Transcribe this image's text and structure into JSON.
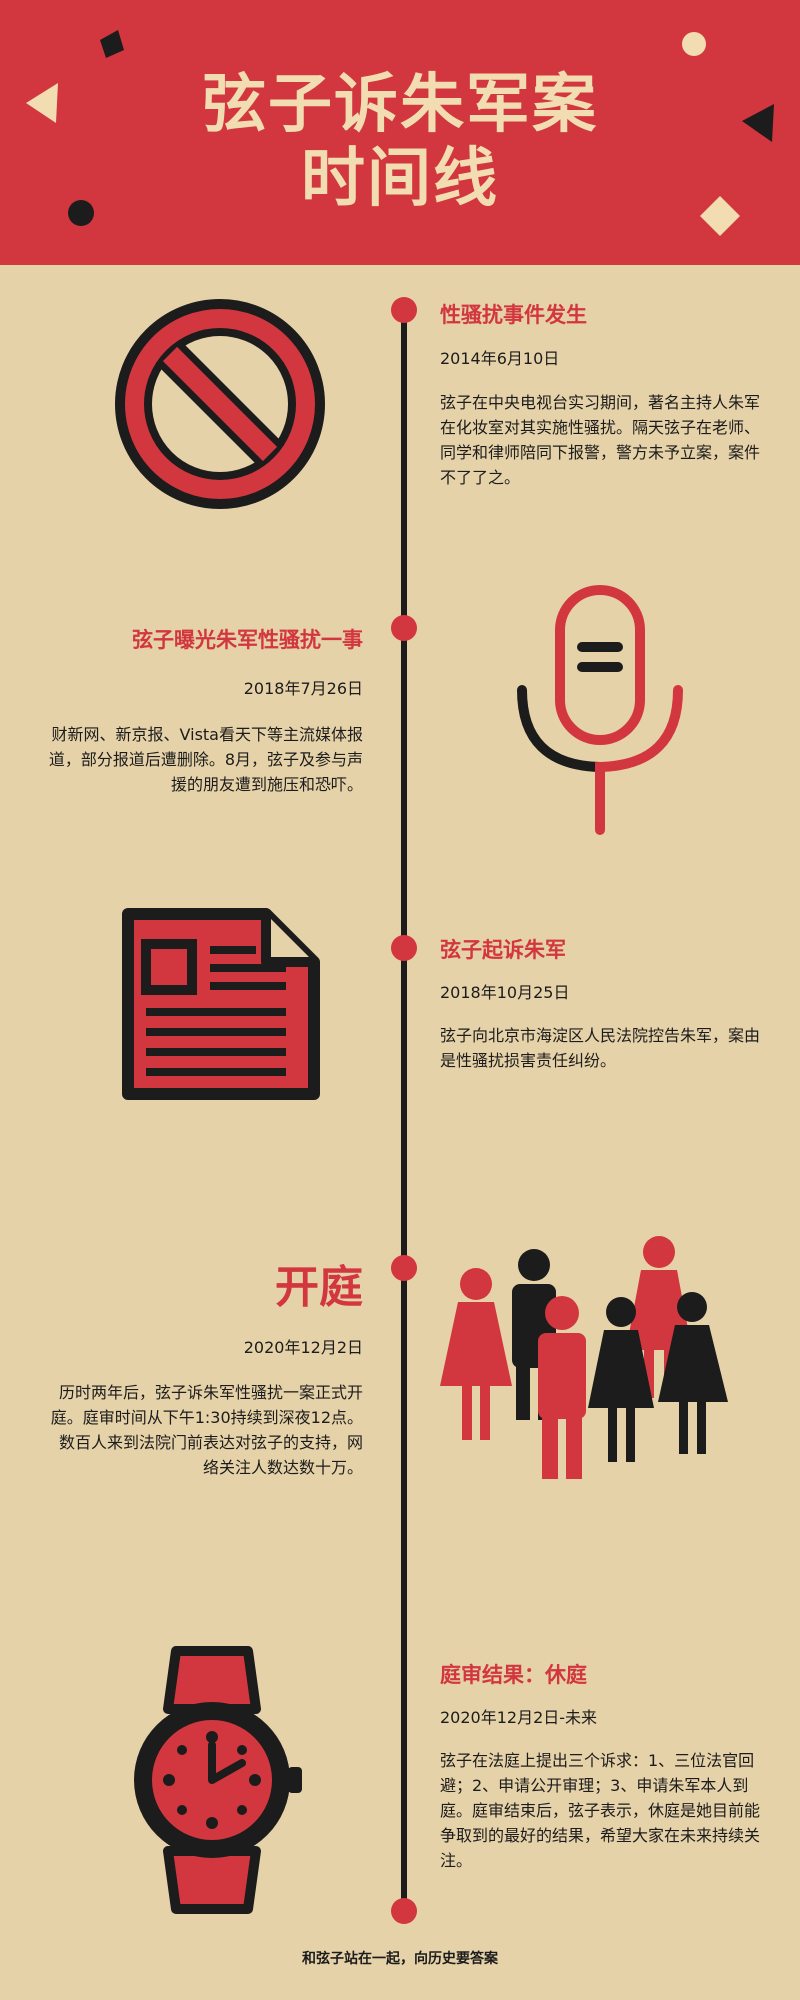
{
  "header": {
    "title_line1": "弦子诉朱军案",
    "title_line2": "时间线"
  },
  "colors": {
    "header_bg": "#d2363f",
    "page_bg": "#e6d2a8",
    "accent": "#d2363f",
    "title_text": "#f2dcb2",
    "dark": "#1c1c1c"
  },
  "events": [
    {
      "title": "性骚扰事件发生",
      "date": "2014年6月10日",
      "text": "弦子在中央电视台实习期间，著名主持人朱军在化妆室对其实施性骚扰。隔天弦子在老师、同学和律师陪同下报警，警方未予立案，案件不了了之。",
      "icon": "prohibition-icon"
    },
    {
      "title": "弦子曝光朱军性骚扰一事",
      "date": "2018年7月26日",
      "text": "财新网、新京报、Vista看天下等主流媒体报道，部分报道后遭删除。8月，弦子及参与声援的朋友遭到施压和恐吓。",
      "icon": "microphone-icon"
    },
    {
      "title": "弦子起诉朱军",
      "date": "2018年10月25日",
      "text": "弦子向北京市海淀区人民法院控告朱军，案由是性骚扰损害责任纠纷。",
      "icon": "document-icon"
    },
    {
      "title": "开庭",
      "date": "2020年12月2日",
      "text": "历时两年后，弦子诉朱军性骚扰一案正式开庭。庭审时间从下午1:30持续到深夜12点。数百人来到法院门前表达对弦子的支持，网络关注人数达数十万。",
      "icon": "crowd-icon"
    },
    {
      "title": "庭审结果：休庭",
      "date": "2020年12月2日-未来",
      "text": "弦子在法庭上提出三个诉求：1、三位法官回避；2、申请公开审理；3、申请朱军本人到庭。庭审结束后，弦子表示，休庭是她目前能争取到的最好的结果，希望大家在未来持续关注。",
      "icon": "watch-icon"
    }
  ],
  "footer": {
    "text": "和弦子站在一起，向历史要答案"
  }
}
